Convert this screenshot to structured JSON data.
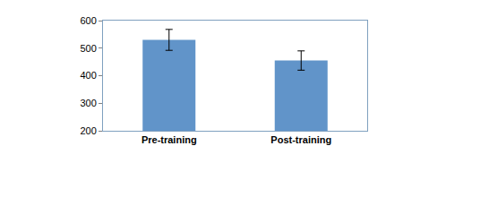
{
  "chart_data": {
    "type": "bar",
    "categories": [
      "Pre-training",
      "Post-training"
    ],
    "values": [
      530,
      455
    ],
    "errors": [
      38,
      35
    ],
    "color": "#6194c9",
    "ylim": [
      200,
      600
    ],
    "yticks": [
      200,
      300,
      400,
      500,
      600
    ],
    "grid": false
  }
}
